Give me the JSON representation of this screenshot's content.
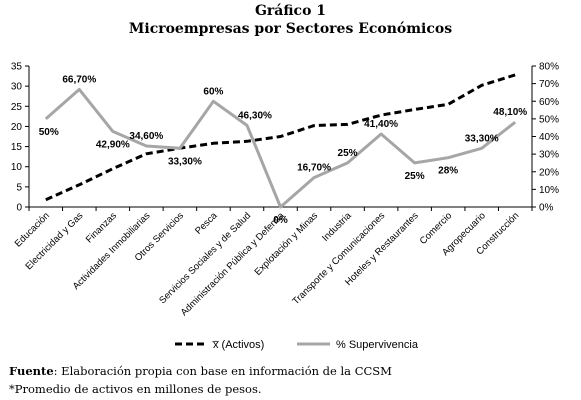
{
  "chart_data": {
    "type": "line",
    "title": "Gráfico 1",
    "subtitle": "Microempresas por Sectores Económicos",
    "categories": [
      "Educación",
      "Electricidad y Gas",
      "Finanzas",
      "Actividades Inmobiliarias",
      "Otros Servicios",
      "Pesca",
      "Servicios Sociales y de Salud",
      "Administración Pública y Defensa",
      "Explotación y Minas",
      "Industria",
      "Transporte y Comunicaciones",
      "Hoteles y Restaurantes",
      "Comercio",
      "Agropecuario",
      "Construcción"
    ],
    "series": [
      {
        "name": "x̅  (Activos)",
        "axis": "left",
        "style": "dashed",
        "color": "#000000",
        "values": [
          1.8,
          5.5,
          9.5,
          13.2,
          14.6,
          15.8,
          16.3,
          17.5,
          20.2,
          20.5,
          22.8,
          24.2,
          25.5,
          30.2,
          32.8
        ]
      },
      {
        "name": "% Supervivencia",
        "axis": "right",
        "style": "solid",
        "color": "#a6a6a6",
        "values": [
          50,
          66.7,
          42.9,
          34.6,
          33.3,
          60,
          46.3,
          0,
          16.7,
          25,
          41.4,
          25,
          28,
          33.3,
          48.1
        ],
        "labels": [
          "50%",
          "66,70%",
          "42,90%",
          "34,60%",
          "33,30%",
          "60%",
          "46,30%",
          "0%",
          "16,70%",
          "25%",
          "41,40%",
          "25%",
          "28%",
          "33,30%",
          "48,10%"
        ]
      }
    ],
    "y_left": {
      "min": 0,
      "max": 35,
      "ticks": [
        "0",
        "5",
        "10",
        "15",
        "20",
        "25",
        "30",
        "35"
      ]
    },
    "y_right": {
      "min": 0,
      "max": 80,
      "ticks": [
        "0%",
        "10%",
        "20%",
        "30%",
        "40%",
        "50%",
        "60%",
        "70%",
        "80%"
      ]
    },
    "grid": false,
    "legend": "bottom"
  },
  "notes": {
    "source_label": "Fuente",
    "source_text": ": Elaboración propia con base en información de la CCSM",
    "footnote": "*Promedio de activos en millones de pesos."
  }
}
